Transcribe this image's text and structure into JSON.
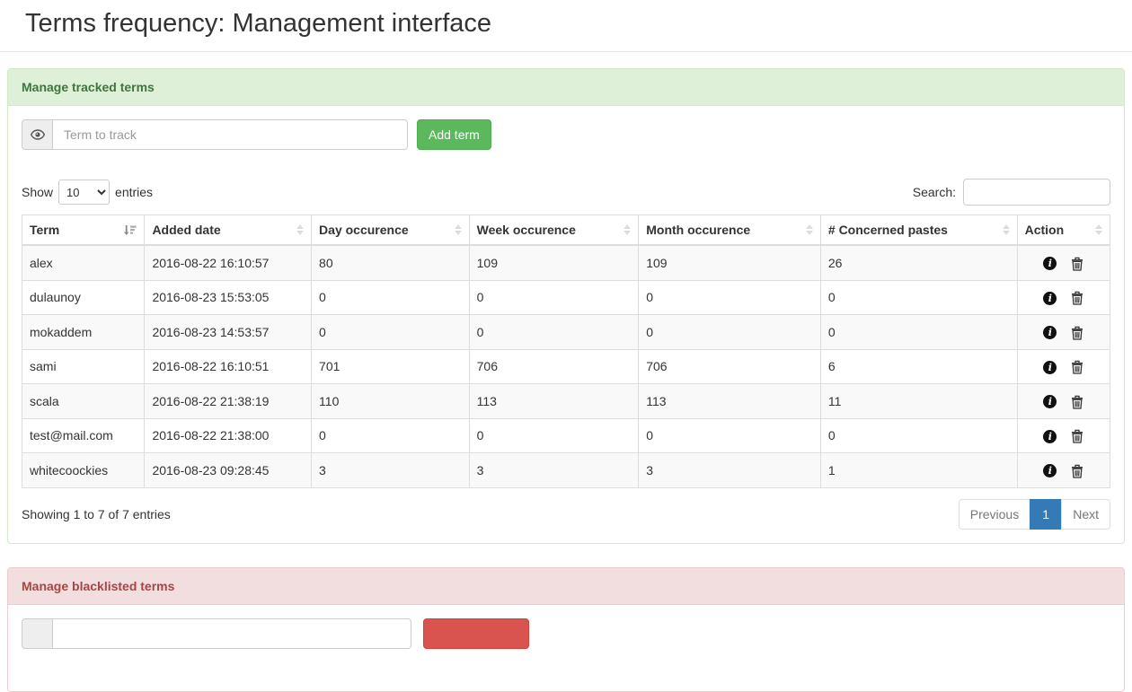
{
  "page": {
    "title": "Terms frequency: Management interface"
  },
  "tracked_panel": {
    "header": "Manage tracked terms",
    "term_placeholder": "Term to track",
    "add_button_label": "Add term"
  },
  "controls": {
    "show_label": "Show",
    "entries_label": "entries",
    "page_size_selected": "10",
    "search_label": "Search:",
    "search_value": ""
  },
  "table": {
    "headers": [
      "Term",
      "Added date",
      "Day occurence",
      "Week occurence",
      "Month occurence",
      "# Concerned pastes",
      "Action"
    ],
    "rows": [
      {
        "term": "alex",
        "added_date": "2016-08-22 16:10:57",
        "day": "80",
        "week": "109",
        "month": "109",
        "pastes": "26"
      },
      {
        "term": "dulaunoy",
        "added_date": "2016-08-23 15:53:05",
        "day": "0",
        "week": "0",
        "month": "0",
        "pastes": "0"
      },
      {
        "term": "mokaddem",
        "added_date": "2016-08-23 14:53:57",
        "day": "0",
        "week": "0",
        "month": "0",
        "pastes": "0"
      },
      {
        "term": "sami",
        "added_date": "2016-08-22 16:10:51",
        "day": "701",
        "week": "706",
        "month": "706",
        "pastes": "6"
      },
      {
        "term": "scala",
        "added_date": "2016-08-22 21:38:19",
        "day": "110",
        "week": "113",
        "month": "113",
        "pastes": "11"
      },
      {
        "term": "test@mail.com",
        "added_date": "2016-08-22 21:38:00",
        "day": "0",
        "week": "0",
        "month": "0",
        "pastes": "0"
      },
      {
        "term": "whitecoockies",
        "added_date": "2016-08-23 09:28:45",
        "day": "3",
        "week": "3",
        "month": "3",
        "pastes": "1"
      }
    ],
    "info_icon": "i",
    "summary": "Showing 1 to 7 of 7 entries",
    "pagination": {
      "previous_label": "Previous",
      "active_page": "1",
      "next_label": "Next"
    }
  },
  "blacklist_panel": {
    "header": "Manage blacklisted terms"
  },
  "colors": {
    "success_bg": "#dff0d8",
    "success_text": "#3c763d",
    "success_border": "#d6e9c6",
    "danger_bg": "#f2dede",
    "danger_text": "#a94442",
    "danger_border": "#ebccd1",
    "add_button": "#5cb85c",
    "danger_button": "#d9534f",
    "pagination_active": "#337ab7",
    "row_stripe": "#f9f9f9",
    "table_border": "#dddddd"
  }
}
